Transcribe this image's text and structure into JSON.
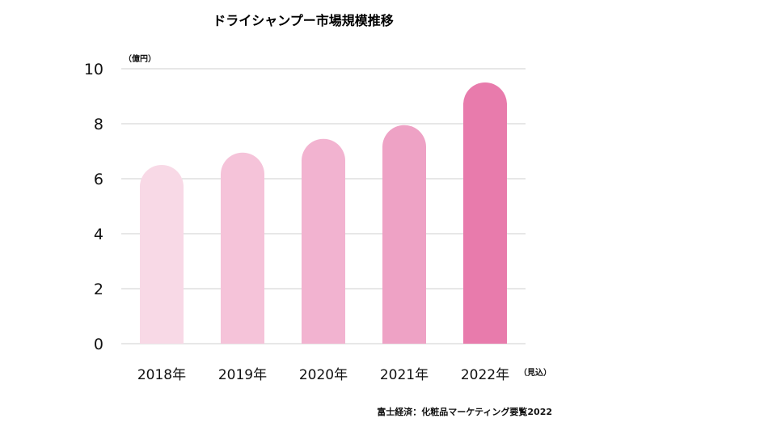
{
  "colors": {
    "grid": "#cfcfcf",
    "text": "#111111",
    "background": "#ffffff"
  },
  "chart_data": {
    "type": "bar",
    "title": "ドライシャンプー市場規模推移",
    "xlabel": "",
    "ylabel": "",
    "unit": "（億円）",
    "categories": [
      "2018年",
      "2019年",
      "2020年",
      "2021年",
      "2022年"
    ],
    "category_notes": [
      "",
      "",
      "",
      "",
      "（見込）"
    ],
    "values": [
      6.5,
      6.95,
      7.45,
      7.95,
      9.5
    ],
    "bar_colors": [
      "#f8d9e6",
      "#f5c3d9",
      "#f2b3d0",
      "#eea2c5",
      "#e87bac"
    ],
    "ylim": [
      0,
      10
    ],
    "yticks": [
      0,
      2,
      4,
      6,
      8,
      10
    ],
    "grid": true,
    "legend": "none",
    "source": "富士経済：化粧品マーケティング要覧2022"
  }
}
